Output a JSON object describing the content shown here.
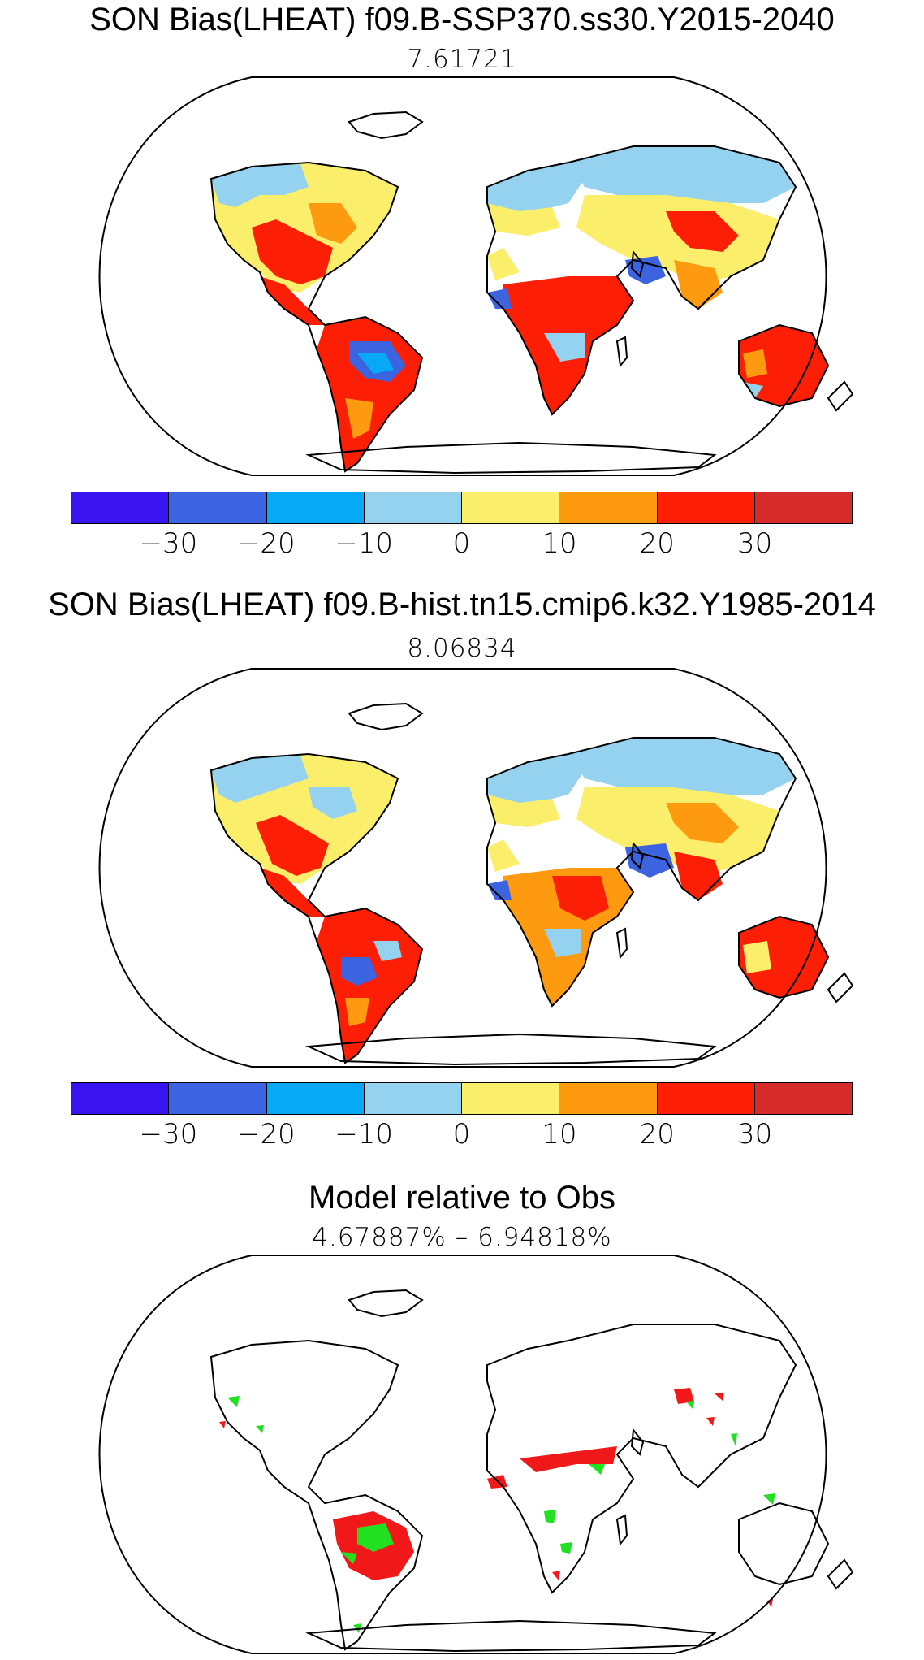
{
  "panels": [
    {
      "title": "SON Bias(LHEAT) f09.B-SSP370.ss30.Y2015-2040",
      "subtitle": "7.61721",
      "kind": "bias"
    },
    {
      "title": "SON Bias(LHEAT) f09.B-hist.tn15.cmip6.k32.Y1985-2014",
      "subtitle": "8.06834",
      "kind": "bias"
    },
    {
      "title": "Model relative to Obs",
      "subtitle": "4.67887%  –  6.94818%",
      "kind": "relative"
    }
  ],
  "colorbar": {
    "colors": [
      "#3a14f0",
      "#3d64e0",
      "#07a8f5",
      "#94d2ef",
      "#fbee6b",
      "#fd9a10",
      "#fd1f05",
      "#d52b2b"
    ],
    "labels": [
      "−30",
      "−20",
      "−10",
      "0",
      "10",
      "20",
      "30"
    ]
  },
  "relative_colors": {
    "model_better": "#20e020",
    "model_worse": "#f01818"
  }
}
